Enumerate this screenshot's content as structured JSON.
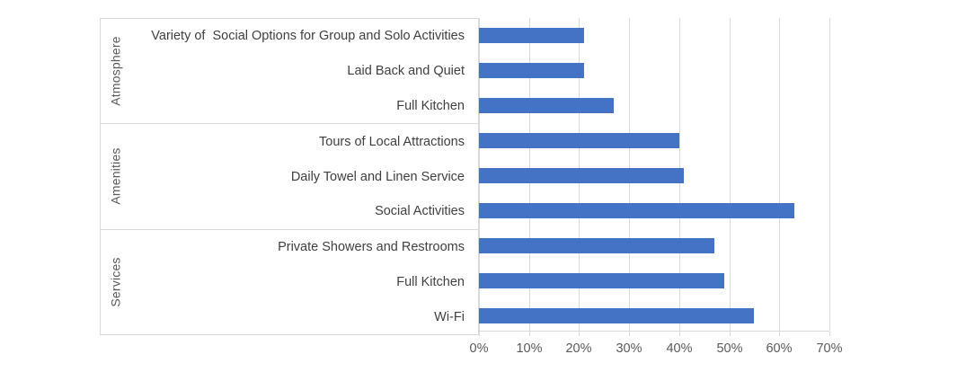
{
  "chart_data": {
    "type": "bar",
    "orientation": "horizontal",
    "title": "",
    "legend": "none",
    "grid": "vertical",
    "groups": [
      {
        "label": "Atmosphere",
        "items": [
          {
            "category": "Variety of  Social Options for Group and Solo Activities",
            "value": 21
          },
          {
            "category": "Laid Back and Quiet",
            "value": 21
          },
          {
            "category": "Full Kitchen",
            "value": 27
          }
        ]
      },
      {
        "label": "Amenities",
        "items": [
          {
            "category": "Tours of Local Attractions",
            "value": 40
          },
          {
            "category": "Daily Towel and Linen Service",
            "value": 41
          },
          {
            "category": "Social Activities",
            "value": 63
          }
        ]
      },
      {
        "label": "Services",
        "items": [
          {
            "category": "Private Showers and Restrooms",
            "value": 47
          },
          {
            "category": "Full Kitchen",
            "value": 49
          },
          {
            "category": "Wi-Fi",
            "value": 55
          }
        ]
      }
    ],
    "x_axis": {
      "unit": "%",
      "min": 0,
      "max": 70,
      "step": 10,
      "tick_labels": [
        "0%",
        "10%",
        "20%",
        "30%",
        "40%",
        "50%",
        "60%",
        "70%"
      ]
    },
    "colors": {
      "bar": "#4472C4",
      "gridline": "#d9d9d9",
      "axis_line": "#d9d9d9",
      "category_label": "#3f3f3f",
      "tick_label": "#595959",
      "group_label": "#595959"
    }
  }
}
